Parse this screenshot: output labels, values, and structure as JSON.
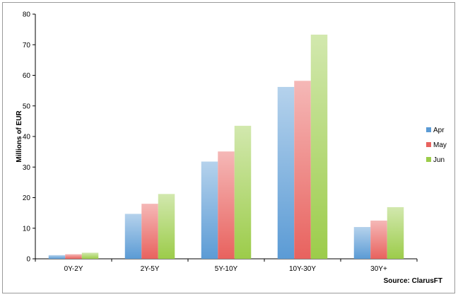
{
  "chart_data": {
    "type": "bar",
    "categories": [
      "0Y-2Y",
      "2Y-5Y",
      "5Y-10Y",
      "10Y-30Y",
      "30Y+"
    ],
    "series": [
      {
        "name": "Apr",
        "values": [
          1.2,
          14.7,
          31.8,
          56.2,
          10.4
        ],
        "color": "#5b9bd5"
      },
      {
        "name": "May",
        "values": [
          1.5,
          18.0,
          35.1,
          58.2,
          12.5
        ],
        "color": "#e8625e"
      },
      {
        "name": "Jun",
        "values": [
          2.0,
          21.2,
          43.5,
          73.3,
          16.9
        ],
        "color": "#9ccc4a"
      }
    ],
    "ylabel": "Millions of EUR",
    "xlabel": "",
    "ylim": [
      0,
      80
    ],
    "yticks": [
      0,
      10,
      20,
      30,
      40,
      50,
      60,
      70,
      80
    ],
    "grid": false,
    "legend_position": "right",
    "source": "Source: ClarusFT"
  }
}
